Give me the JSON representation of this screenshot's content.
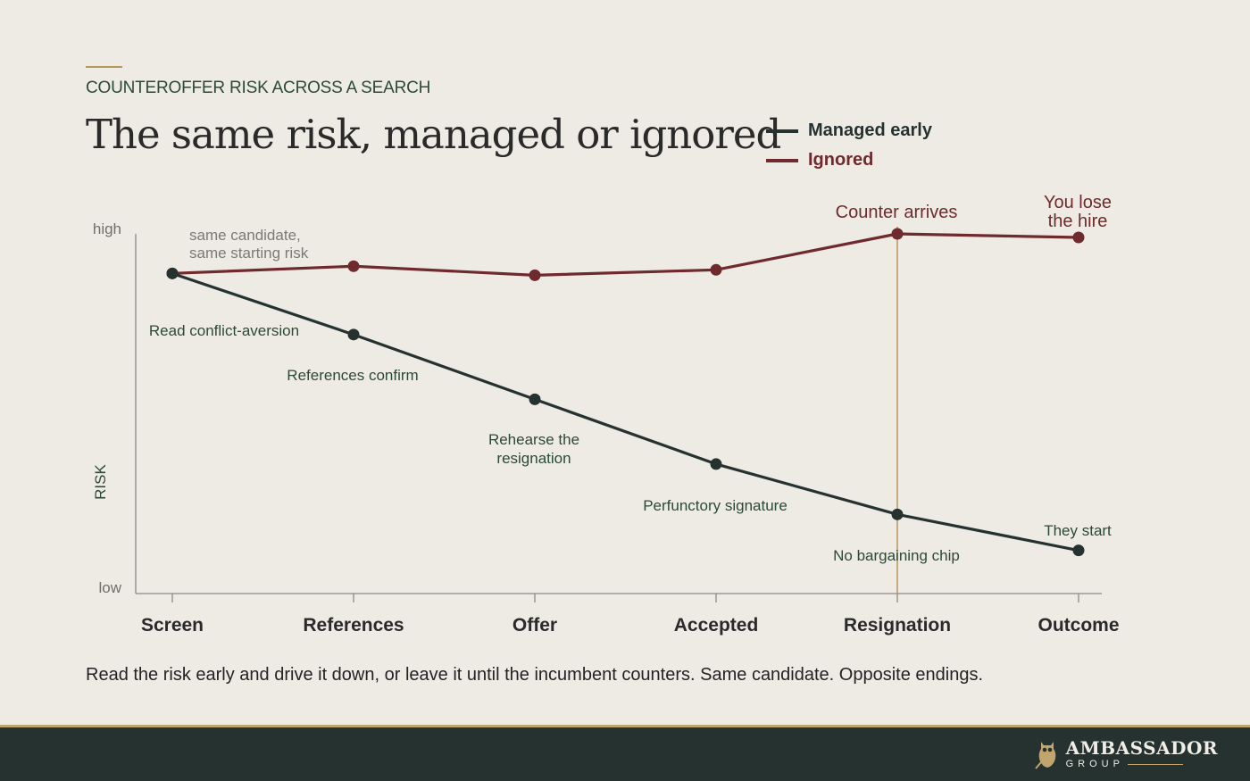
{
  "header": {
    "eyebrow": "COUNTEROFFER RISK ACROSS A SEARCH",
    "title": "The same risk, managed or ignored"
  },
  "legend": [
    {
      "label": "Managed early",
      "color": "#263230"
    },
    {
      "label": "Ignored",
      "color": "#6e2a2c"
    }
  ],
  "chart_data": {
    "type": "line",
    "categories": [
      "Screen",
      "References",
      "Offer",
      "Accepted",
      "Resignation",
      "Outcome"
    ],
    "ylabel": "RISK",
    "y_tick_labels": {
      "top": "high",
      "bottom": "low"
    },
    "ylim": [
      0,
      100
    ],
    "grid": false,
    "legend_position": "top-right",
    "series": [
      {
        "name": "Managed early",
        "color": "#263230",
        "values": [
          89,
          72,
          54,
          36,
          22,
          12
        ],
        "annotations": [
          "Read conflict-aversion",
          "References confirm",
          "Rehearse the resignation",
          "Perfunctory signature",
          "No bargaining chip",
          "They start"
        ]
      },
      {
        "name": "Ignored",
        "color": "#6e2a2c",
        "values": [
          89,
          91,
          88.5,
          90,
          100,
          99
        ],
        "annotations": [
          "",
          "",
          "",
          "",
          "Counter arrives",
          "You lose the hire"
        ]
      }
    ],
    "start_note": "same candidate, same starting risk",
    "marker_category": "Resignation"
  },
  "caption": "Read the risk early and drive it down, or leave it until the incumbent counters. Same candidate. Opposite endings.",
  "footer": {
    "brand_name": "AMBASSADOR",
    "brand_sub": "GROUP",
    "accent_color": "#c2a56e"
  }
}
